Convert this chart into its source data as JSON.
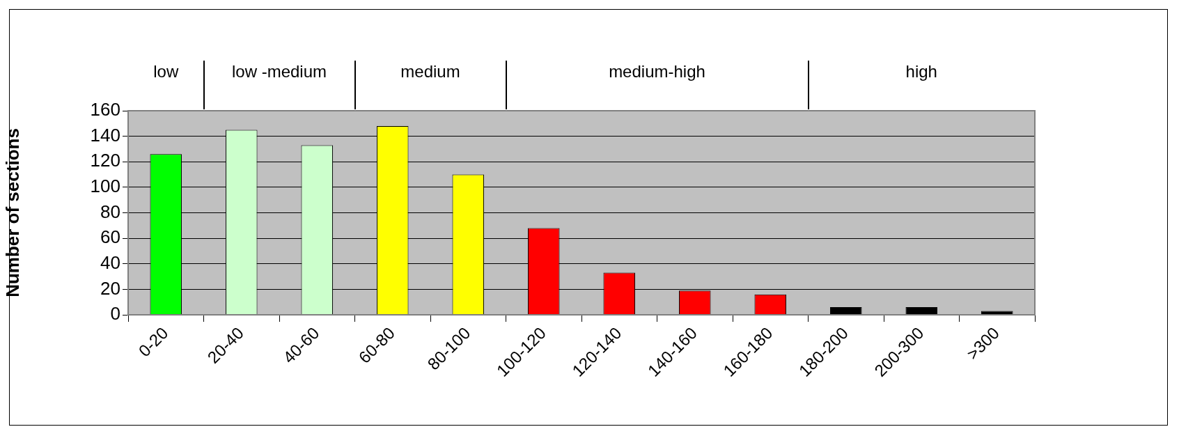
{
  "chart_data": {
    "type": "bar",
    "ylabel": "Number of sections",
    "categories": [
      "0-20",
      "20-40",
      "40-60",
      "60-80",
      "80-100",
      "100-120",
      "120-140",
      "140-160",
      "160-180",
      "180-200",
      "200-300",
      ">300"
    ],
    "values": [
      126,
      145,
      133,
      148,
      110,
      68,
      33,
      19,
      16,
      6,
      6,
      3
    ],
    "colors": [
      "#00ff00",
      "#ccffcc",
      "#ccffcc",
      "#ffff00",
      "#ffff00",
      "#ff0000",
      "#ff0000",
      "#ff0000",
      "#ff0000",
      "#000000",
      "#000000",
      "#000000"
    ],
    "ylim": [
      0,
      160
    ],
    "yticks": [
      0,
      20,
      40,
      60,
      80,
      100,
      120,
      140,
      160
    ],
    "grid": "y",
    "annotations": [
      "low",
      "low -medium",
      "medium",
      "medium-high",
      "high"
    ]
  }
}
